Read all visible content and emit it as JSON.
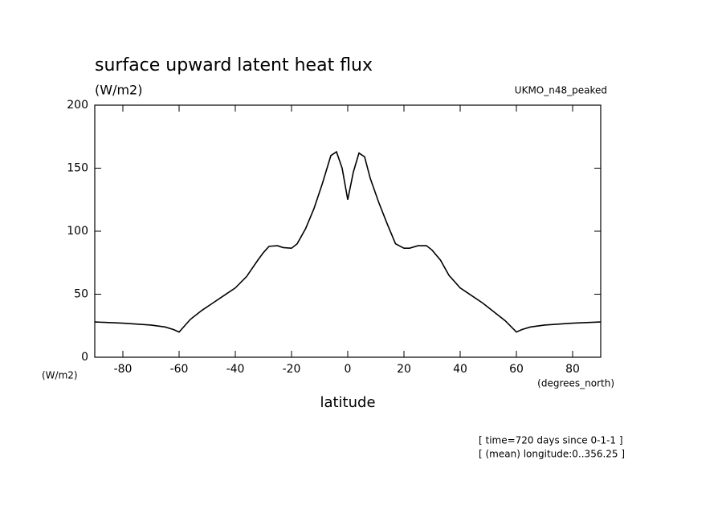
{
  "chart_data": {
    "type": "line",
    "title": "surface upward latent heat flux",
    "subtitle": "(W/m2)",
    "source_label": "UKMO_n48_peaked",
    "y_unit_label": "(W/m2)",
    "x_unit_label": "(degrees_north)",
    "xlabel": "latitude",
    "annotations": [
      "[ time=720 days since 0-1-1 ]",
      "[ (mean) longitude:0..356.25 ]"
    ],
    "x": [
      -90,
      -80,
      -70,
      -65,
      -62,
      -60,
      -56,
      -52,
      -48,
      -44,
      -40,
      -36,
      -32,
      -30,
      -28,
      -25,
      -23,
      -20,
      -18,
      -15,
      -12,
      -9,
      -6,
      -4,
      -2,
      0,
      2,
      4,
      6,
      8,
      11,
      14,
      17,
      20,
      22,
      25,
      28,
      30,
      33,
      36,
      40,
      44,
      48,
      52,
      56,
      60,
      62,
      65,
      70,
      80,
      90
    ],
    "series": [
      {
        "name": "latent heat flux",
        "color": "#000000",
        "values": [
          28,
          27,
          25.5,
          24,
          22,
          20,
          30,
          37,
          43,
          49,
          55,
          64,
          77,
          83,
          88,
          88.5,
          87,
          86.5,
          90,
          102,
          118,
          138,
          160,
          163,
          150,
          125,
          147,
          162,
          159,
          142,
          123,
          106,
          90,
          86.5,
          86.5,
          88.5,
          88.5,
          85,
          77,
          65,
          55,
          49,
          43,
          36,
          29,
          20,
          22,
          24,
          25.5,
          27,
          28
        ]
      }
    ],
    "xlim": [
      -90,
      90
    ],
    "ylim": [
      0,
      200
    ],
    "xticks": [
      -80,
      -60,
      -40,
      -20,
      0,
      20,
      40,
      60,
      80
    ],
    "yticks": [
      0,
      50,
      100,
      150,
      200
    ]
  }
}
